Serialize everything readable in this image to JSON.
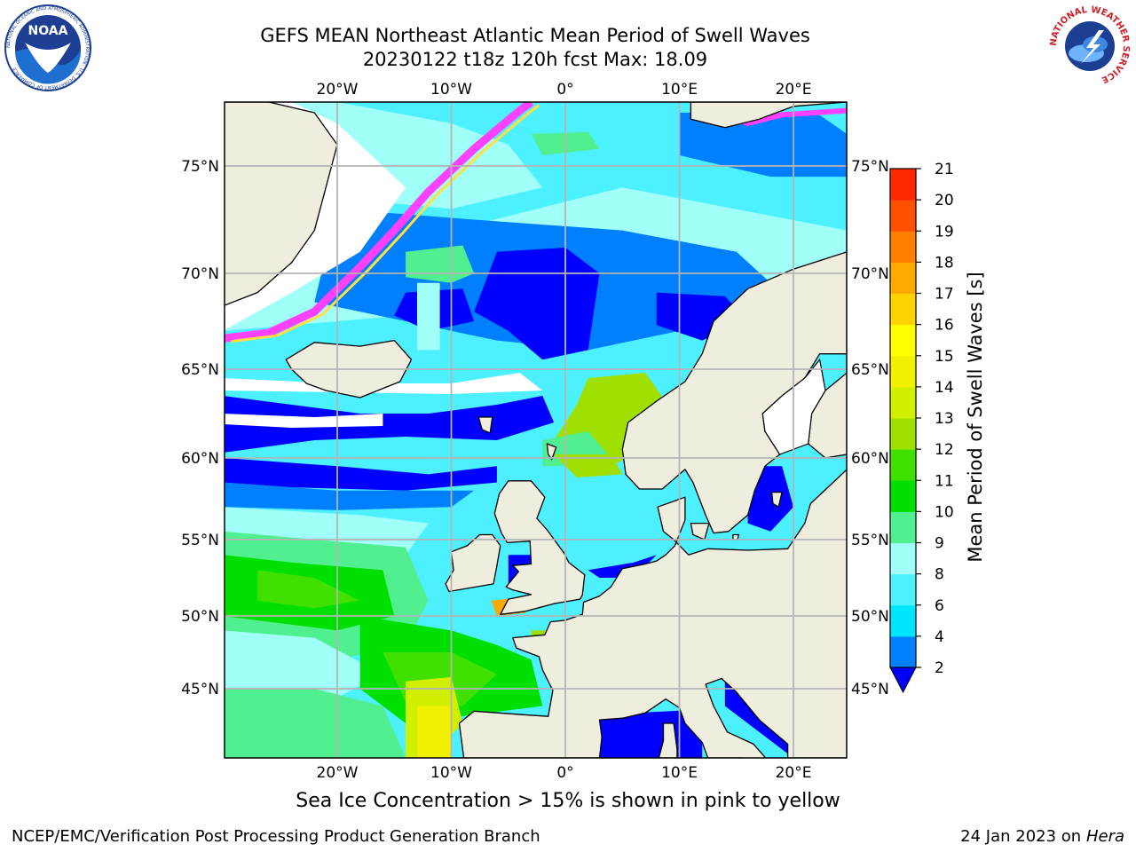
{
  "header": {
    "title": "GEFS MEAN Northeast Atlantic Mean Period of Swell Waves",
    "subtitle": "20230122 t18z 120h fcst   Max: 18.09"
  },
  "logos": {
    "noaa_text": "NOAA",
    "noaa_ring_text": "NATIONAL OCEANIC AND ATMOSPHERIC ADMINISTRATION · U.S. DEPARTMENT OF COMMERCE",
    "nws_ring_text": "NATIONAL WEATHER SERVICE"
  },
  "map": {
    "lon_labels": [
      "20°W",
      "10°W",
      "0°",
      "10°E",
      "20°E"
    ],
    "lat_labels": [
      "75°N",
      "70°N",
      "65°N",
      "60°N",
      "55°N",
      "50°N",
      "45°N"
    ],
    "lon_values": [
      -20,
      -10,
      0,
      10,
      20
    ],
    "lat_values": [
      75,
      70,
      65,
      60,
      55,
      50,
      45
    ],
    "extent": {
      "lon_min": -30,
      "lon_max": 24.7,
      "lat_min": 41,
      "lat_max": 78
    },
    "colors": {
      "land": "#efedde",
      "no_data": "#ffffff",
      "grid": "#b4b4b4",
      "ice_pink": "#ff40ff",
      "ice_yellow": "#ffe040"
    }
  },
  "colorbar": {
    "label": "Mean Period of Swell Waves [s]",
    "ticks": [
      "2",
      "4",
      "6",
      "8",
      "9",
      "10",
      "11",
      "12",
      "13",
      "14",
      "15",
      "16",
      "17",
      "18",
      "19",
      "20",
      "21"
    ],
    "colors": [
      "#0080ff",
      "#00e5ff",
      "#4cf0ff",
      "#a0fff8",
      "#50f090",
      "#00e000",
      "#40e000",
      "#a0e000",
      "#d0f000",
      "#f0f000",
      "#ffff00",
      "#ffd200",
      "#ffa800",
      "#ff8000",
      "#ff5000",
      "#ff2800"
    ],
    "under_color": "#0000ff"
  },
  "caption": "Sea Ice Concentration > 15% is shown in pink to yellow",
  "footer": {
    "left": "NCEP/EMC/Verification Post Processing Product Generation Branch",
    "right_prefix": "24 Jan 2023 on ",
    "right_host": "Hera"
  }
}
